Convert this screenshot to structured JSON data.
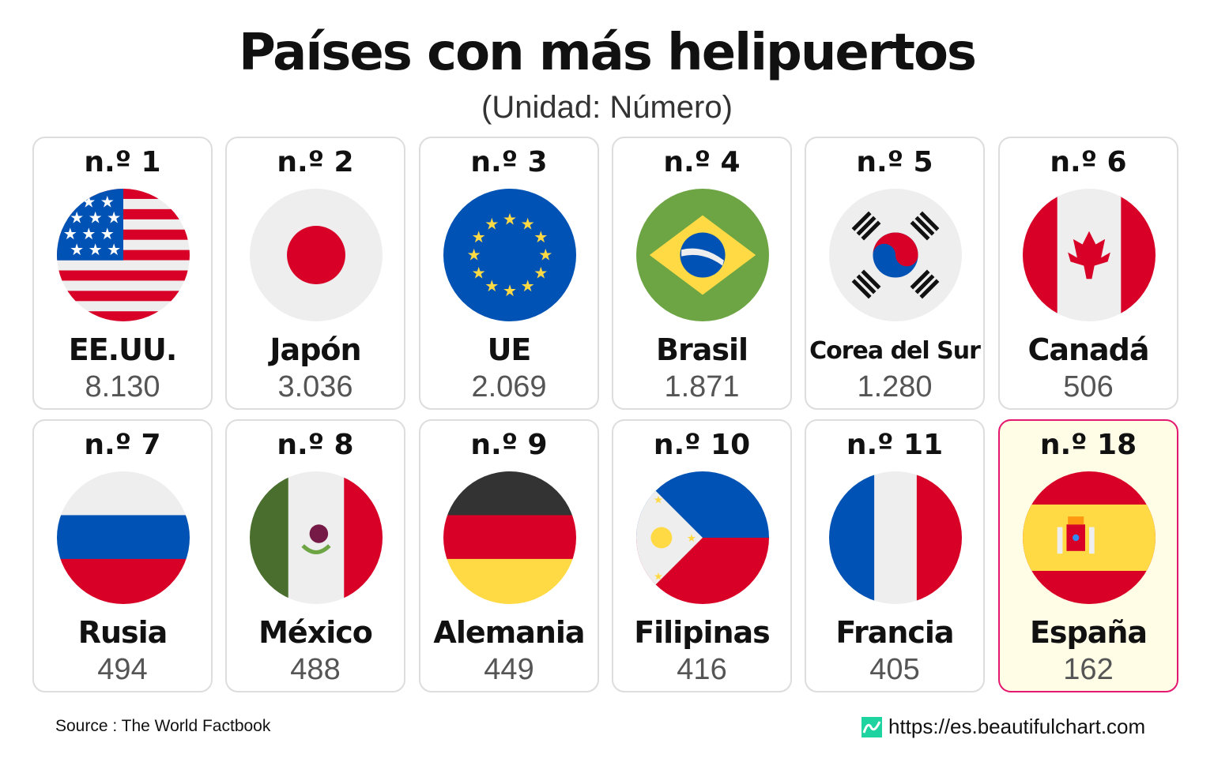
{
  "title": "Países con más helipuertos",
  "subtitle": "(Unidad: Número)",
  "source": "Source : The World Factbook",
  "site": "https://es.beautifulchart.com",
  "colors": {
    "highlight_border": "#e5186f",
    "highlight_bg": "#fffde6",
    "logo": "#1dd3a0"
  },
  "chart_data": {
    "type": "table",
    "title": "Países con más helipuertos",
    "unit": "(Unidad: Número)",
    "items": [
      {
        "rank": "n.º 1",
        "name": "EE.UU.",
        "value": "8.130",
        "flag": "usa-flag-icon"
      },
      {
        "rank": "n.º 2",
        "name": "Japón",
        "value": "3.036",
        "flag": "japan-flag-icon"
      },
      {
        "rank": "n.º 3",
        "name": "UE",
        "value": "2.069",
        "flag": "eu-flag-icon"
      },
      {
        "rank": "n.º 4",
        "name": "Brasil",
        "value": "1.871",
        "flag": "brazil-flag-icon"
      },
      {
        "rank": "n.º 5",
        "name": "Corea del Sur",
        "value": "1.280",
        "flag": "south-korea-flag-icon"
      },
      {
        "rank": "n.º 6",
        "name": "Canadá",
        "value": "506",
        "flag": "canada-flag-icon"
      },
      {
        "rank": "n.º 7",
        "name": "Rusia",
        "value": "494",
        "flag": "russia-flag-icon"
      },
      {
        "rank": "n.º 8",
        "name": "México",
        "value": "488",
        "flag": "mexico-flag-icon"
      },
      {
        "rank": "n.º 9",
        "name": "Alemania",
        "value": "449",
        "flag": "germany-flag-icon"
      },
      {
        "rank": "n.º 10",
        "name": "Filipinas",
        "value": "416",
        "flag": "philippines-flag-icon"
      },
      {
        "rank": "n.º 11",
        "name": "Francia",
        "value": "405",
        "flag": "france-flag-icon"
      },
      {
        "rank": "n.º 18",
        "name": "España",
        "value": "162",
        "flag": "spain-flag-icon",
        "highlighted": true
      }
    ]
  }
}
